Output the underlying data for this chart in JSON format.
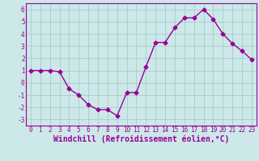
{
  "x": [
    0,
    1,
    2,
    3,
    4,
    5,
    6,
    7,
    8,
    9,
    10,
    11,
    12,
    13,
    14,
    15,
    16,
    17,
    18,
    19,
    20,
    21,
    22,
    23
  ],
  "y": [
    1,
    1,
    1,
    0.9,
    -0.5,
    -1,
    -1.8,
    -2.2,
    -2.2,
    -2.7,
    -0.8,
    -0.8,
    1.3,
    3.3,
    3.3,
    4.5,
    5.3,
    5.3,
    6.0,
    5.2,
    4.0,
    3.2,
    2.6,
    1.9
  ],
  "xlabel": "Windchill (Refroidissement éolien,°C)",
  "xlim": [
    -0.5,
    23.5
  ],
  "ylim": [
    -3.5,
    6.5
  ],
  "yticks": [
    -3,
    -2,
    -1,
    0,
    1,
    2,
    3,
    4,
    5,
    6
  ],
  "xticks": [
    0,
    1,
    2,
    3,
    4,
    5,
    6,
    7,
    8,
    9,
    10,
    11,
    12,
    13,
    14,
    15,
    16,
    17,
    18,
    19,
    20,
    21,
    22,
    23
  ],
  "line_color": "#990099",
  "marker": "D",
  "marker_size": 2.5,
  "bg_color": "#cce8e8",
  "grid_color": "#aacccc",
  "line_width": 1.0,
  "tick_label_fontsize": 5.5,
  "xlabel_fontsize": 7.0
}
